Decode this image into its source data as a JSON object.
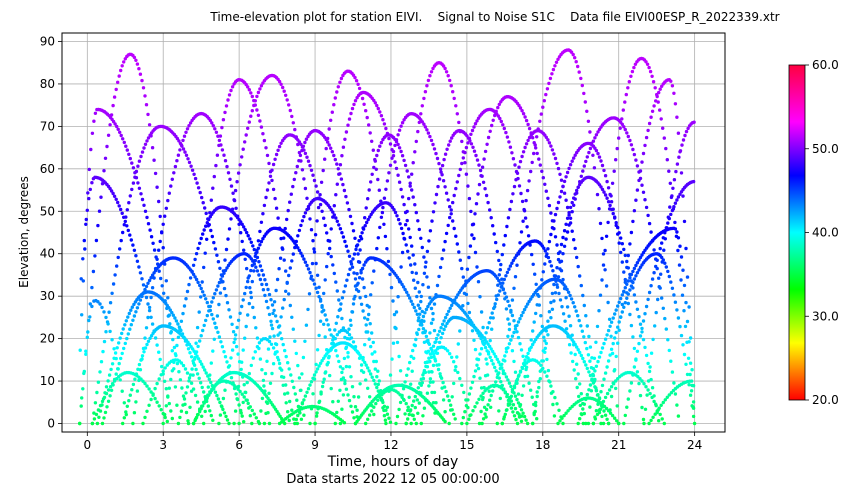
{
  "chart_data": {
    "type": "scatter",
    "title": "Time-elevation plot for station EIVI.    Signal to Noise S1C    Data file EIVI00ESP_R_2022339.xtr",
    "xlabel": "Time, hours of day",
    "xlabel2": "Data starts 2022 12 05 00:00:00",
    "ylabel": "Elevation, degrees",
    "xlim": [
      -1,
      25.2
    ],
    "ylim": [
      -2,
      92
    ],
    "xticks": [
      0,
      3,
      6,
      9,
      12,
      15,
      18,
      21,
      24
    ],
    "xtick_labels": [
      "0",
      "3",
      "6",
      "9",
      "12",
      "15",
      "18",
      "21",
      "24"
    ],
    "yticks": [
      0,
      10,
      20,
      30,
      40,
      50,
      60,
      70,
      80,
      90
    ],
    "ytick_labels": [
      "0",
      "10",
      "20",
      "30",
      "40",
      "50",
      "60",
      "70",
      "80",
      "90"
    ],
    "grid": true,
    "colorbar": {
      "label": "Signal to Noise S1C",
      "range": [
        20,
        60
      ],
      "ticks": [
        20,
        30,
        40,
        50,
        60
      ],
      "tick_labels": [
        "20.0",
        "30.0",
        "40.0",
        "50.0",
        "60.0"
      ],
      "colormap": "hsv"
    },
    "arcs": [
      {
        "t0": -0.3,
        "t1": 3.6,
        "peak": 87,
        "tp": 1.7
      },
      {
        "t0": 0.2,
        "t1": 6.5,
        "peak": 70,
        "tp": 2.9
      },
      {
        "t0": 1.8,
        "t1": 7.2,
        "peak": 73,
        "tp": 4.5
      },
      {
        "t0": 4.0,
        "t1": 8.6,
        "peak": 81,
        "tp": 6.0
      },
      {
        "t0": 4.6,
        "t1": 9.8,
        "peak": 82,
        "tp": 7.3
      },
      {
        "t0": 5.8,
        "t1": 10.7,
        "peak": 68,
        "tp": 8.0
      },
      {
        "t0": 6.8,
        "t1": 11.8,
        "peak": 69,
        "tp": 9.0
      },
      {
        "t0": 8.3,
        "t1": 12.6,
        "peak": 83,
        "tp": 10.3
      },
      {
        "t0": 8.8,
        "t1": 13.9,
        "peak": 78,
        "tp": 10.9
      },
      {
        "t0": 10.0,
        "t1": 14.2,
        "peak": 68,
        "tp": 11.9
      },
      {
        "t0": 10.6,
        "t1": 15.8,
        "peak": 73,
        "tp": 12.8
      },
      {
        "t0": 11.8,
        "t1": 16.0,
        "peak": 85,
        "tp": 13.9
      },
      {
        "t0": 12.6,
        "t1": 17.2,
        "peak": 69,
        "tp": 14.7
      },
      {
        "t0": 13.0,
        "t1": 18.5,
        "peak": 74,
        "tp": 15.9
      },
      {
        "t0": 14.3,
        "t1": 19.7,
        "peak": 77,
        "tp": 16.6
      },
      {
        "t0": 15.5,
        "t1": 20.3,
        "peak": 69,
        "tp": 17.8
      },
      {
        "t0": 16.2,
        "t1": 21.0,
        "peak": 88,
        "tp": 19.0
      },
      {
        "t0": 17.0,
        "t1": 22.0,
        "peak": 66,
        "tp": 19.8
      },
      {
        "t0": 17.6,
        "t1": 23.4,
        "peak": 72,
        "tp": 20.8
      },
      {
        "t0": 19.8,
        "t1": 24.0,
        "peak": 86,
        "tp": 21.9
      },
      {
        "t0": 20.6,
        "t1": 24.0,
        "peak": 81,
        "tp": 23.0
      },
      {
        "t0": -0.6,
        "t1": 3.4,
        "peak": 58,
        "tp": 0.3
      },
      {
        "t0": -0.4,
        "t1": 4.0,
        "peak": 74,
        "tp": 0.4
      },
      {
        "t0": 0.4,
        "t1": 5.0,
        "peak": 31,
        "tp": 2.4
      },
      {
        "t0": 0.6,
        "t1": 6.2,
        "peak": 39,
        "tp": 3.4
      },
      {
        "t0": 1.4,
        "t1": 5.6,
        "peak": 23,
        "tp": 3.0
      },
      {
        "t0": 3.0,
        "t1": 8.5,
        "peak": 51,
        "tp": 5.3
      },
      {
        "t0": 3.6,
        "t1": 8.0,
        "peak": 40,
        "tp": 6.2
      },
      {
        "t0": 4.2,
        "t1": 7.8,
        "peak": 12,
        "tp": 5.8
      },
      {
        "t0": 5.2,
        "t1": 10.6,
        "peak": 46,
        "tp": 7.4
      },
      {
        "t0": 7.0,
        "t1": 11.8,
        "peak": 53,
        "tp": 9.1
      },
      {
        "t0": 8.2,
        "t1": 12.0,
        "peak": 19,
        "tp": 10.1
      },
      {
        "t0": 9.0,
        "t1": 13.8,
        "peak": 52,
        "tp": 11.8
      },
      {
        "t0": 9.8,
        "t1": 14.6,
        "peak": 39,
        "tp": 11.2
      },
      {
        "t0": 10.6,
        "t1": 14.2,
        "peak": 9,
        "tp": 12.3
      },
      {
        "t0": 12.2,
        "t1": 17.0,
        "peak": 30,
        "tp": 13.9
      },
      {
        "t0": 12.6,
        "t1": 17.8,
        "peak": 36,
        "tp": 15.8
      },
      {
        "t0": 13.2,
        "t1": 17.4,
        "peak": 25,
        "tp": 14.5
      },
      {
        "t0": 14.8,
        "t1": 19.6,
        "peak": 43,
        "tp": 17.7
      },
      {
        "t0": 15.6,
        "t1": 20.4,
        "peak": 34,
        "tp": 18.5
      },
      {
        "t0": 16.4,
        "t1": 20.6,
        "peak": 23,
        "tp": 18.4
      },
      {
        "t0": 17.6,
        "t1": 22.6,
        "peak": 58,
        "tp": 19.8
      },
      {
        "t0": 19.4,
        "t1": 24.0,
        "peak": 46,
        "tp": 23.2
      },
      {
        "t0": 20.0,
        "t1": 24.0,
        "peak": 40,
        "tp": 22.5
      },
      {
        "t0": 21.2,
        "t1": 24.0,
        "peak": 57,
        "tp": 24.0
      },
      {
        "t0": 22.0,
        "t1": 24.0,
        "peak": 71,
        "tp": 24.0
      }
    ],
    "low_arcs": [
      {
        "t0": -0.3,
        "t1": 1.6,
        "peak": 29,
        "tp": 0.3
      },
      {
        "t0": 0.2,
        "t1": 3.2,
        "peak": 12,
        "tp": 1.6
      },
      {
        "t0": 2.2,
        "t1": 4.6,
        "peak": 15,
        "tp": 3.5
      },
      {
        "t0": 4.2,
        "t1": 6.8,
        "peak": 10,
        "tp": 5.4
      },
      {
        "t0": 6.0,
        "t1": 8.2,
        "peak": 20,
        "tp": 7.0
      },
      {
        "t0": 7.6,
        "t1": 10.2,
        "peak": 4,
        "tp": 8.9
      },
      {
        "t0": 9.0,
        "t1": 11.4,
        "peak": 22,
        "tp": 10.1
      },
      {
        "t0": 11.0,
        "t1": 13.0,
        "peak": 8,
        "tp": 12.0
      },
      {
        "t0": 12.8,
        "t1": 15.2,
        "peak": 18,
        "tp": 14.0
      },
      {
        "t0": 15.0,
        "t1": 17.2,
        "peak": 9,
        "tp": 16.1
      },
      {
        "t0": 16.4,
        "t1": 18.8,
        "peak": 15,
        "tp": 17.6
      },
      {
        "t0": 18.6,
        "t1": 21.0,
        "peak": 6,
        "tp": 19.8
      },
      {
        "t0": 20.0,
        "t1": 22.8,
        "peak": 12,
        "tp": 21.4
      },
      {
        "t0": 22.2,
        "t1": 24.0,
        "peak": 10,
        "tp": 23.9
      }
    ]
  }
}
